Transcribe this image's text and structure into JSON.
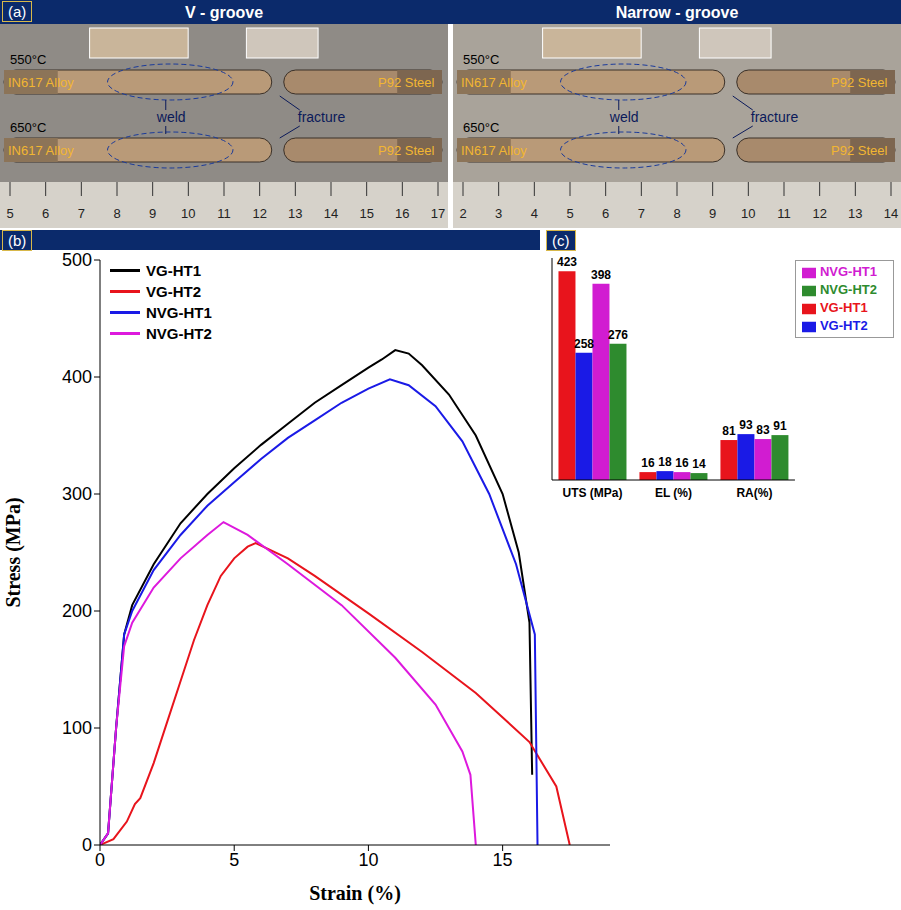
{
  "specimen_panel": {
    "panel_label": "(a)",
    "halves": [
      {
        "title": "V - groove",
        "rows": [
          "550°C",
          "650°C"
        ],
        "materials": [
          "IN617 Alloy",
          "P92 Steel"
        ],
        "labels": [
          "weld",
          "fracture"
        ],
        "ruler": [
          5,
          6,
          7,
          8,
          9,
          10,
          11,
          12,
          13,
          14,
          15,
          16,
          17
        ]
      },
      {
        "title": "Narrow - groove",
        "rows": [
          "550°C",
          "650°C"
        ],
        "materials": [
          "IN617 Alloy",
          "P92 Steel"
        ],
        "labels": [
          "weld",
          "fracture"
        ],
        "ruler": [
          2,
          3,
          4,
          5,
          6,
          7,
          8,
          9,
          10,
          11,
          12,
          13,
          14
        ]
      }
    ]
  },
  "chart_data": [
    {
      "type": "line",
      "panel_label": "(b)",
      "x_label": "Strain (%)",
      "y_label": "Stress (MPa)",
      "xlim": [
        0,
        19
      ],
      "xticks": [
        0,
        5,
        10,
        15
      ],
      "ylim": [
        0,
        500
      ],
      "yticks": [
        0,
        100,
        200,
        300,
        400,
        500
      ],
      "legend": "upper left",
      "series": [
        {
          "name": "VG-HT1",
          "color": "#000000",
          "x": [
            0,
            0.3,
            0.6,
            0.9,
            1.2,
            2,
            3,
            4,
            5,
            6,
            7,
            8,
            9,
            10,
            10.5,
            11,
            11.5,
            12,
            13,
            14,
            15,
            15.6,
            16,
            16.1
          ],
          "values": [
            0,
            10,
            100,
            180,
            205,
            240,
            275,
            300,
            322,
            342,
            360,
            378,
            393,
            408,
            415,
            423,
            420,
            410,
            385,
            350,
            300,
            250,
            190,
            60
          ]
        },
        {
          "name": "VG-HT2",
          "color": "#e8141c",
          "x": [
            0,
            0.5,
            1,
            1.3,
            1.5,
            2,
            2.5,
            3,
            3.5,
            4,
            4.5,
            5,
            5.5,
            5.8,
            7,
            8,
            10,
            12,
            14,
            16,
            17,
            17.5
          ],
          "values": [
            0,
            5,
            20,
            35,
            40,
            70,
            105,
            140,
            175,
            205,
            230,
            245,
            255,
            258,
            245,
            230,
            198,
            165,
            130,
            88,
            50,
            0
          ]
        },
        {
          "name": "NVG-HT1",
          "color": "#1a1ae6",
          "x": [
            0,
            0.3,
            0.6,
            0.9,
            1.2,
            2,
            3,
            4,
            5,
            6,
            7,
            8,
            9,
            10,
            10.8,
            11.5,
            12.5,
            13.5,
            14.5,
            15.5,
            16.2,
            16.3
          ],
          "values": [
            0,
            10,
            100,
            180,
            200,
            235,
            265,
            290,
            310,
            330,
            348,
            363,
            378,
            390,
            398,
            393,
            375,
            345,
            300,
            240,
            180,
            0
          ]
        },
        {
          "name": "NVG-HT2",
          "color": "#dd19dd",
          "x": [
            0,
            0.3,
            0.6,
            0.9,
            1.2,
            2,
            3,
            4,
            4.6,
            5.5,
            7,
            9,
            11,
            12.5,
            13.5,
            13.8,
            14
          ],
          "values": [
            0,
            10,
            100,
            170,
            190,
            220,
            245,
            265,
            276,
            265,
            240,
            205,
            160,
            120,
            80,
            60,
            0
          ]
        }
      ]
    },
    {
      "type": "bar",
      "panel_label": "(c)",
      "categories": [
        "UTS (MPa)",
        "EL (%)",
        "RA(%)"
      ],
      "ylim": [
        0,
        450
      ],
      "tick_labels": "x",
      "data_labels": true,
      "legend": "upper right",
      "series": [
        {
          "name": "VG-HT1",
          "color": "#e8141c",
          "values": [
            423,
            16,
            81
          ]
        },
        {
          "name": "VG-HT2",
          "color": "#1a1ae6",
          "values": [
            258,
            18,
            93
          ]
        },
        {
          "name": "NVG-HT1",
          "color": "#d11cd1",
          "values": [
            398,
            16,
            83
          ]
        },
        {
          "name": "NVG-HT2",
          "color": "#2e8b2e",
          "values": [
            276,
            14,
            91
          ]
        }
      ]
    }
  ]
}
